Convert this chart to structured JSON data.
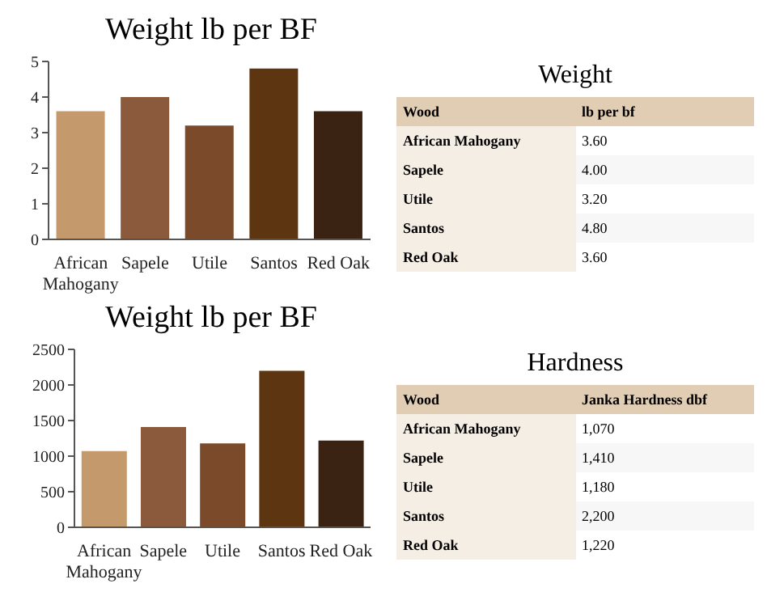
{
  "chart_data": [
    {
      "type": "bar",
      "title": "Weight lb per BF",
      "categories": [
        "African Mahogany",
        "Sapele",
        "Utile",
        "Santos",
        "Red Oak"
      ],
      "values": [
        3.6,
        4.0,
        3.2,
        4.8,
        3.6
      ],
      "colors": [
        "#c49a6c",
        "#8b5a3c",
        "#7a4a2a",
        "#5e3511",
        "#3b2313"
      ],
      "ylim": [
        0,
        5
      ],
      "yticks": [
        0,
        1,
        2,
        3,
        4,
        5
      ]
    },
    {
      "type": "other",
      "title": "Weight",
      "annotations": [
        "Wood",
        "lb per bf",
        "African Mahogany",
        "3.60",
        "Sapele",
        "4.00",
        "Utile",
        "3.20",
        "Santos",
        "4.80",
        "Red Oak",
        "3.60"
      ]
    },
    {
      "type": "bar",
      "title": "Weight lb per BF",
      "categories": [
        "African Mahogany",
        "Sapele",
        "Utile",
        "Santos",
        "Red Oak"
      ],
      "values": [
        1070,
        1410,
        1180,
        2200,
        1220
      ],
      "colors": [
        "#c49a6c",
        "#8b5a3c",
        "#7a4a2a",
        "#5e3511",
        "#3b2313"
      ],
      "ylim": [
        0,
        2500
      ],
      "yticks": [
        0,
        500,
        1000,
        1500,
        2000,
        2500
      ]
    },
    {
      "type": "other",
      "title": "Hardness",
      "annotations": [
        "Wood",
        "Janka Hardness dbf",
        "African Mahogany",
        "1,070",
        "Sapele",
        "1,410",
        "Utile",
        "1,180",
        "Santos",
        "2,200",
        "Red Oak",
        "1,220"
      ]
    }
  ]
}
